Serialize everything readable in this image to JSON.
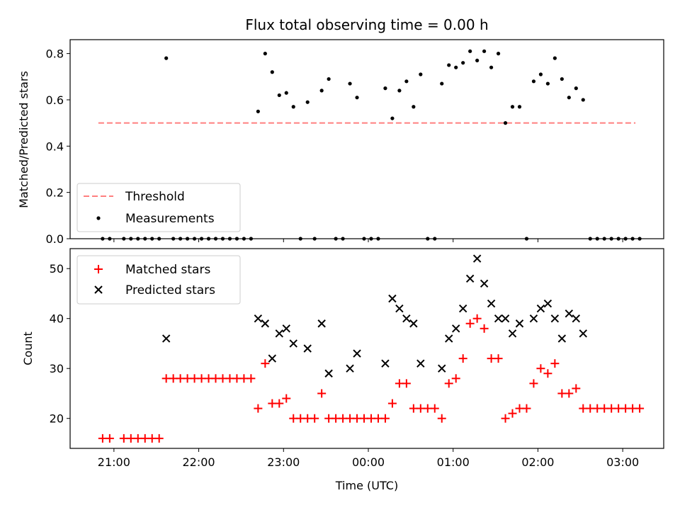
{
  "chart_data": [
    {
      "type": "scatter",
      "title": "Flux total observing time = 0.00 h",
      "ylabel": "Matched/Predicted stars",
      "xlim": [
        "20:29",
        "03:29"
      ],
      "ylim": [
        0,
        0.86
      ],
      "yticks": [
        "0.0",
        "0.2",
        "0.4",
        "0.6",
        "0.8"
      ],
      "legend_position": "lower-left",
      "threshold": {
        "name": "Threshold",
        "value": 0.5,
        "x_start": "20:49",
        "x_end": "03:09",
        "color": "#ff7f7f",
        "style": "dashed"
      },
      "series": [
        {
          "name": "Measurements",
          "color": "#000000",
          "marker": "dot",
          "points": [
            [
              "20:52",
              0
            ],
            [
              "20:57",
              0
            ],
            [
              "21:07",
              0
            ],
            [
              "21:12",
              0
            ],
            [
              "21:17",
              0
            ],
            [
              "21:22",
              0
            ],
            [
              "21:27",
              0
            ],
            [
              "21:32",
              0
            ],
            [
              "21:37",
              0.78
            ],
            [
              "21:42",
              0
            ],
            [
              "21:47",
              0
            ],
            [
              "21:52",
              0
            ],
            [
              "21:57",
              0
            ],
            [
              "22:02",
              0
            ],
            [
              "22:07",
              0
            ],
            [
              "22:12",
              0
            ],
            [
              "22:17",
              0
            ],
            [
              "22:22",
              0
            ],
            [
              "22:27",
              0
            ],
            [
              "22:32",
              0
            ],
            [
              "22:37",
              0
            ],
            [
              "22:42",
              0.55
            ],
            [
              "22:47",
              0.8
            ],
            [
              "22:52",
              0.72
            ],
            [
              "22:57",
              0.62
            ],
            [
              "23:02",
              0.63
            ],
            [
              "23:07",
              0.57
            ],
            [
              "23:12",
              0
            ],
            [
              "23:17",
              0.59
            ],
            [
              "23:22",
              0
            ],
            [
              "23:27",
              0.64
            ],
            [
              "23:32",
              0.69
            ],
            [
              "23:37",
              0
            ],
            [
              "23:42",
              0
            ],
            [
              "23:47",
              0.67
            ],
            [
              "23:52",
              0.61
            ],
            [
              "23:57",
              0
            ],
            [
              "24:02",
              0
            ],
            [
              "24:07",
              0
            ],
            [
              "24:12",
              0.65
            ],
            [
              "24:17",
              0.52
            ],
            [
              "24:22",
              0.64
            ],
            [
              "24:27",
              0.68
            ],
            [
              "24:32",
              0.57
            ],
            [
              "24:37",
              0.71
            ],
            [
              "24:42",
              0
            ],
            [
              "24:47",
              0
            ],
            [
              "24:52",
              0.67
            ],
            [
              "24:57",
              0.75
            ],
            [
              "25:02",
              0.74
            ],
            [
              "25:07",
              0.76
            ],
            [
              "25:12",
              0.81
            ],
            [
              "25:17",
              0.77
            ],
            [
              "25:22",
              0.81
            ],
            [
              "25:27",
              0.74
            ],
            [
              "25:32",
              0.8
            ],
            [
              "25:37",
              0.5
            ],
            [
              "25:42",
              0.57
            ],
            [
              "25:47",
              0.57
            ],
            [
              "25:52",
              0
            ],
            [
              "25:57",
              0.68
            ],
            [
              "26:02",
              0.71
            ],
            [
              "26:07",
              0.67
            ],
            [
              "26:12",
              0.78
            ],
            [
              "26:17",
              0.69
            ],
            [
              "26:22",
              0.61
            ],
            [
              "26:27",
              0.65
            ],
            [
              "26:32",
              0.6
            ],
            [
              "26:37",
              0
            ],
            [
              "26:42",
              0
            ],
            [
              "26:47",
              0
            ],
            [
              "26:52",
              0
            ],
            [
              "26:57",
              0
            ],
            [
              "27:02",
              0
            ],
            [
              "27:07",
              0
            ],
            [
              "27:12",
              0
            ]
          ]
        }
      ]
    },
    {
      "type": "scatter",
      "xlabel": "Time (UTC)",
      "ylabel": "Count",
      "xlim": [
        "20:29",
        "03:29"
      ],
      "ylim": [
        14,
        54
      ],
      "xticks": [
        "21:00",
        "22:00",
        "23:00",
        "00:00",
        "01:00",
        "02:00",
        "03:00"
      ],
      "yticks": [
        "20",
        "30",
        "40",
        "50"
      ],
      "legend_position": "upper-left",
      "series": [
        {
          "name": "Matched stars",
          "color": "#ff0000",
          "marker": "plus",
          "points": [
            [
              "20:52",
              16
            ],
            [
              "20:57",
              16
            ],
            [
              "21:07",
              16
            ],
            [
              "21:12",
              16
            ],
            [
              "21:17",
              16
            ],
            [
              "21:22",
              16
            ],
            [
              "21:27",
              16
            ],
            [
              "21:32",
              16
            ],
            [
              "21:37",
              28
            ],
            [
              "21:42",
              28
            ],
            [
              "21:47",
              28
            ],
            [
              "21:52",
              28
            ],
            [
              "21:57",
              28
            ],
            [
              "22:02",
              28
            ],
            [
              "22:07",
              28
            ],
            [
              "22:12",
              28
            ],
            [
              "22:17",
              28
            ],
            [
              "22:22",
              28
            ],
            [
              "22:27",
              28
            ],
            [
              "22:32",
              28
            ],
            [
              "22:37",
              28
            ],
            [
              "22:42",
              22
            ],
            [
              "22:47",
              31
            ],
            [
              "22:52",
              23
            ],
            [
              "22:57",
              23
            ],
            [
              "23:02",
              24
            ],
            [
              "23:07",
              20
            ],
            [
              "23:12",
              20
            ],
            [
              "23:17",
              20
            ],
            [
              "23:22",
              20
            ],
            [
              "23:27",
              25
            ],
            [
              "23:32",
              20
            ],
            [
              "23:37",
              20
            ],
            [
              "23:42",
              20
            ],
            [
              "23:47",
              20
            ],
            [
              "23:52",
              20
            ],
            [
              "23:57",
              20
            ],
            [
              "24:02",
              20
            ],
            [
              "24:07",
              20
            ],
            [
              "24:12",
              20
            ],
            [
              "24:17",
              23
            ],
            [
              "24:22",
              27
            ],
            [
              "24:27",
              27
            ],
            [
              "24:32",
              22
            ],
            [
              "24:37",
              22
            ],
            [
              "24:42",
              22
            ],
            [
              "24:47",
              22
            ],
            [
              "24:52",
              20
            ],
            [
              "24:57",
              27
            ],
            [
              "25:02",
              28
            ],
            [
              "25:07",
              32
            ],
            [
              "25:12",
              39
            ],
            [
              "25:17",
              40
            ],
            [
              "25:22",
              38
            ],
            [
              "25:27",
              32
            ],
            [
              "25:32",
              32
            ],
            [
              "25:37",
              20
            ],
            [
              "25:42",
              21
            ],
            [
              "25:47",
              22
            ],
            [
              "25:52",
              22
            ],
            [
              "25:57",
              27
            ],
            [
              "26:02",
              30
            ],
            [
              "26:07",
              29
            ],
            [
              "26:12",
              31
            ],
            [
              "26:17",
              25
            ],
            [
              "26:22",
              25
            ],
            [
              "26:27",
              26
            ],
            [
              "26:32",
              22
            ],
            [
              "26:37",
              22
            ],
            [
              "26:42",
              22
            ],
            [
              "26:47",
              22
            ],
            [
              "26:52",
              22
            ],
            [
              "26:57",
              22
            ],
            [
              "27:02",
              22
            ],
            [
              "27:07",
              22
            ],
            [
              "27:12",
              22
            ]
          ]
        },
        {
          "name": "Predicted stars",
          "color": "#000000",
          "marker": "x",
          "points": [
            [
              "21:37",
              36
            ],
            [
              "22:42",
              40
            ],
            [
              "22:47",
              39
            ],
            [
              "22:52",
              32
            ],
            [
              "22:57",
              37
            ],
            [
              "23:02",
              38
            ],
            [
              "23:07",
              35
            ],
            [
              "23:17",
              34
            ],
            [
              "23:27",
              39
            ],
            [
              "23:32",
              29
            ],
            [
              "23:47",
              30
            ],
            [
              "23:52",
              33
            ],
            [
              "24:12",
              31
            ],
            [
              "24:17",
              44
            ],
            [
              "24:22",
              42
            ],
            [
              "24:27",
              40
            ],
            [
              "24:32",
              39
            ],
            [
              "24:37",
              31
            ],
            [
              "24:52",
              30
            ],
            [
              "24:57",
              36
            ],
            [
              "25:02",
              38
            ],
            [
              "25:07",
              42
            ],
            [
              "25:12",
              48
            ],
            [
              "25:17",
              52
            ],
            [
              "25:22",
              47
            ],
            [
              "25:27",
              43
            ],
            [
              "25:32",
              40
            ],
            [
              "25:37",
              40
            ],
            [
              "25:42",
              37
            ],
            [
              "25:47",
              39
            ],
            [
              "25:57",
              40
            ],
            [
              "26:02",
              42
            ],
            [
              "26:07",
              43
            ],
            [
              "26:12",
              40
            ],
            [
              "26:17",
              36
            ],
            [
              "26:22",
              41
            ],
            [
              "26:27",
              40
            ],
            [
              "26:32",
              37
            ]
          ]
        }
      ]
    }
  ]
}
